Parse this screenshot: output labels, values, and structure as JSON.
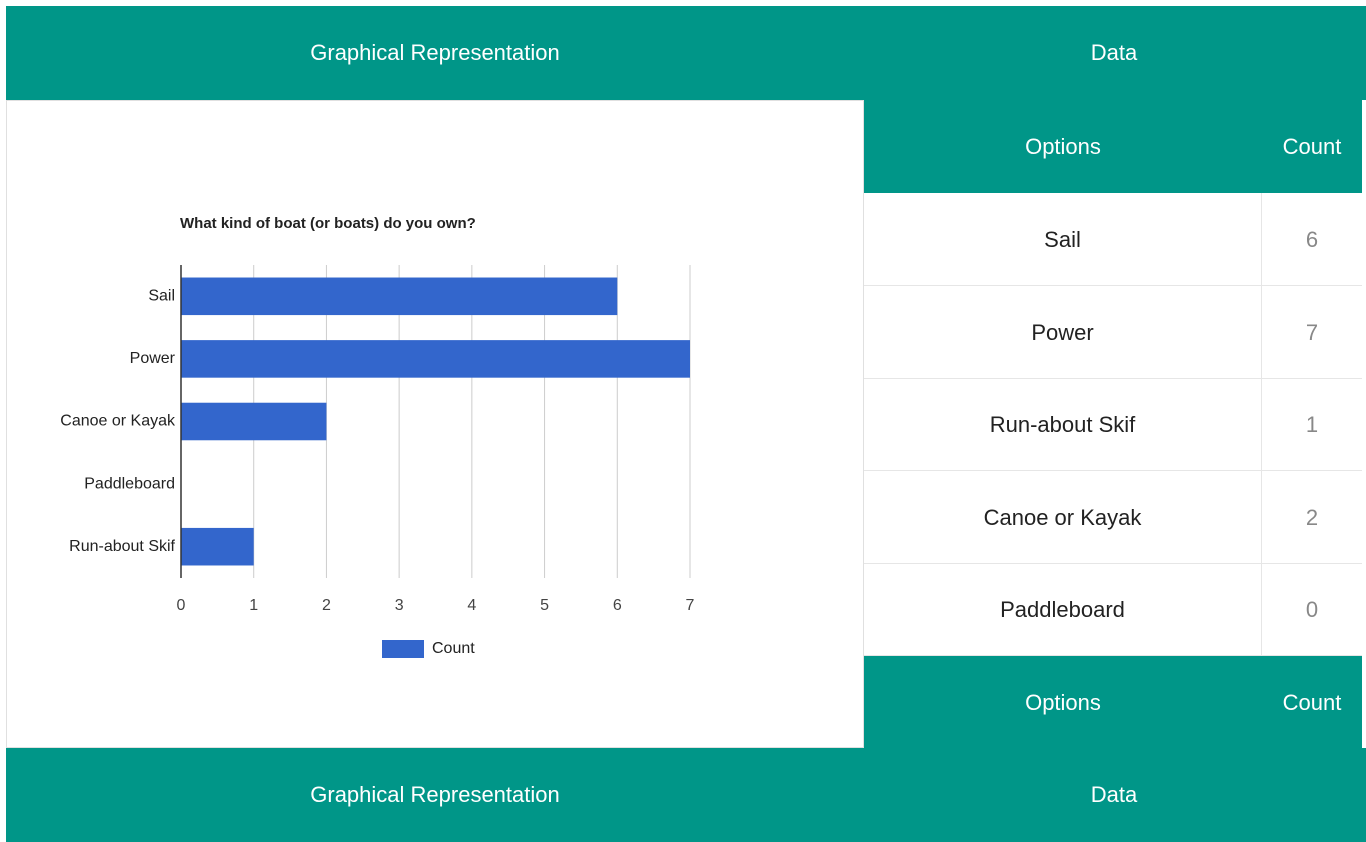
{
  "header": {
    "left": "Graphical Representation",
    "right": "Data"
  },
  "chart_data": {
    "type": "bar",
    "orientation": "horizontal",
    "title": "What kind of boat (or boats) do you own?",
    "categories": [
      "Sail",
      "Power",
      "Canoe or Kayak",
      "Paddleboard",
      "Run-about Skif"
    ],
    "series": [
      {
        "name": "Count",
        "color": "#3366cc",
        "values": [
          6,
          7,
          2,
          0,
          1
        ]
      }
    ],
    "xlim": [
      0,
      7
    ],
    "xticks": [
      0,
      1,
      2,
      3,
      4,
      5,
      6,
      7
    ],
    "grid": true,
    "legend": "bottom"
  },
  "table": {
    "header": [
      "Options",
      "Count"
    ],
    "rows": [
      [
        "Sail",
        6
      ],
      [
        "Power",
        7
      ],
      [
        "Run-about Skif",
        1
      ],
      [
        "Canoe or Kayak",
        2
      ],
      [
        "Paddleboard",
        0
      ]
    ],
    "footer": [
      "Options",
      "Count"
    ]
  },
  "footer": {
    "left": "Graphical Representation",
    "right": "Data"
  }
}
